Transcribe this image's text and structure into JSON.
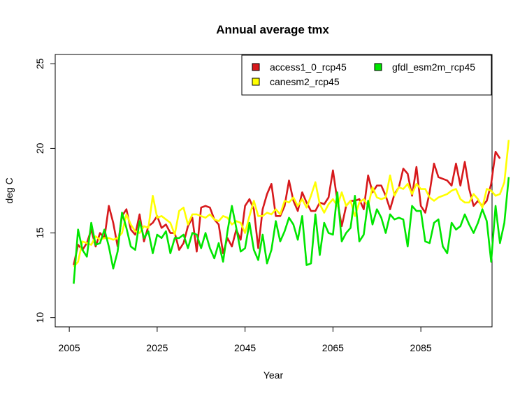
{
  "chart_data": {
    "type": "line",
    "title": "Annual average tmx",
    "xlabel": "Year",
    "ylabel": "deg C",
    "xlim": [
      2001.8,
      2101.2
    ],
    "ylim": [
      9.45,
      25.55
    ],
    "x_ticks": [
      2005,
      2025,
      2045,
      2065,
      2085
    ],
    "y_ticks": [
      10,
      15,
      20,
      25
    ],
    "legend_position": "top-right",
    "x_start": 2006,
    "series": [
      {
        "name": "access1_0_rcp45",
        "color": "#d7191c",
        "values": [
          13.1,
          14.3,
          14.0,
          14.4,
          15.2,
          14.2,
          15.0,
          14.7,
          16.6,
          15.6,
          14.2,
          16.0,
          16.4,
          15.2,
          14.9,
          16.1,
          14.5,
          15.4,
          15.6,
          16.0,
          15.3,
          15.5,
          15.0,
          15.0,
          14.0,
          14.4,
          15.4,
          15.9,
          13.9,
          16.5,
          16.6,
          16.5,
          15.8,
          15.5,
          13.8,
          14.7,
          14.2,
          15.2,
          14.6,
          16.6,
          17.0,
          16.4,
          14.1,
          16.4,
          17.3,
          17.9,
          16.0,
          16.0,
          16.6,
          18.1,
          16.9,
          16.3,
          17.4,
          16.8,
          16.3,
          16.3,
          16.8,
          16.7,
          17.1,
          18.7,
          16.9,
          15.4,
          16.6,
          16.9,
          16.9,
          17.0,
          16.4,
          18.4,
          17.4,
          17.8,
          17.8,
          17.2,
          16.4,
          17.3,
          17.7,
          18.8,
          18.5,
          17.2,
          18.9,
          16.6,
          16.2,
          17.4,
          19.1,
          18.3,
          18.2,
          18.1,
          17.8,
          19.1,
          17.8,
          19.2,
          17.6,
          16.6,
          16.9,
          16.6,
          16.9,
          17.9,
          19.8,
          19.4
        ]
      },
      {
        "name": "canesm2_rcp45",
        "color": "#ffff00",
        "values": [
          13.0,
          13.3,
          14.5,
          14.4,
          14.3,
          14.8,
          14.6,
          14.7,
          14.7,
          14.6,
          14.7,
          15.0,
          16.1,
          15.5,
          15.1,
          15.0,
          15.4,
          15.3,
          17.2,
          15.9,
          16.0,
          15.8,
          15.6,
          14.9,
          16.3,
          16.5,
          15.5,
          16.1,
          16.1,
          16.0,
          15.9,
          16.1,
          15.8,
          15.7,
          16.0,
          15.9,
          15.5,
          15.7,
          15.6,
          15.0,
          16.0,
          16.9,
          16.0,
          16.0,
          16.2,
          16.1,
          16.4,
          16.1,
          16.9,
          16.8,
          17.1,
          16.6,
          17.0,
          16.5,
          17.2,
          18.0,
          16.7,
          16.2,
          16.7,
          17.0,
          16.6,
          17.4,
          16.6,
          16.9,
          16.0,
          16.8,
          17.0,
          16.6,
          17.7,
          17.1,
          17.0,
          17.1,
          18.4,
          17.2,
          17.7,
          17.6,
          17.9,
          17.3,
          17.9,
          17.6,
          17.6,
          17.1,
          16.9,
          17.1,
          17.2,
          17.3,
          17.5,
          17.6,
          17.0,
          16.8,
          16.8,
          17.3,
          17.0,
          16.5,
          17.6,
          17.5,
          17.2,
          17.3,
          18.0,
          20.5
        ]
      },
      {
        "name": "gfdl_esm2m_rcp45",
        "color": "#00e600",
        "values": [
          12.0,
          15.2,
          14.0,
          13.6,
          15.6,
          14.3,
          14.4,
          15.2,
          14.2,
          12.9,
          13.9,
          16.2,
          15.3,
          14.2,
          14.0,
          15.7,
          14.7,
          15.1,
          13.8,
          14.9,
          14.7,
          15.1,
          13.8,
          14.7,
          14.7,
          14.9,
          14.1,
          15.0,
          14.9,
          14.1,
          15.0,
          14.1,
          13.5,
          14.4,
          13.3,
          15.1,
          16.6,
          15.3,
          13.9,
          14.1,
          15.6,
          14.0,
          13.4,
          14.9,
          13.2,
          14.0,
          15.7,
          14.5,
          15.1,
          15.9,
          15.5,
          14.6,
          16.0,
          13.1,
          13.2,
          16.1,
          13.7,
          15.6,
          15.0,
          14.9,
          17.4,
          14.5,
          15.0,
          15.3,
          17.2,
          14.5,
          14.9,
          16.9,
          15.5,
          16.4,
          15.9,
          15.0,
          16.1,
          15.8,
          15.9,
          15.8,
          14.2,
          16.6,
          16.3,
          16.3,
          14.5,
          14.4,
          15.6,
          15.8,
          14.2,
          13.8,
          15.6,
          15.2,
          15.4,
          16.1,
          15.5,
          15.0,
          15.6,
          16.4,
          15.7,
          13.3,
          16.6,
          14.4,
          15.6,
          18.3
        ]
      }
    ]
  }
}
